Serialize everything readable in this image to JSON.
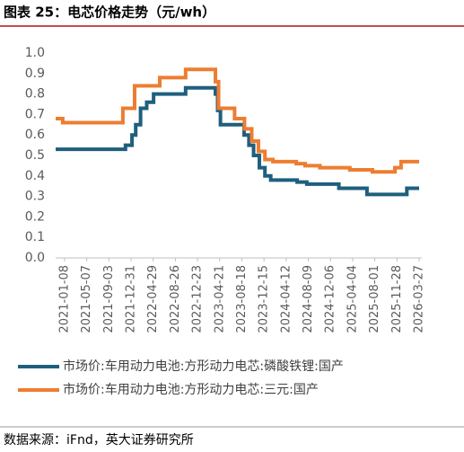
{
  "chart_data": {
    "type": "line",
    "step": true,
    "title": "图表 25：电芯价格走势（元/wh）",
    "source": "数据来源：iFnd，英大证券研究所",
    "xlim": [
      "2020-11-21",
      "2026-03-27"
    ],
    "xticks": [
      "2021-01-08",
      "2021-05-07",
      "2021-09-03",
      "2021-12-31",
      "2022-04-29",
      "2022-08-26",
      "2022-12-23",
      "2023-04-21",
      "2023-08-18",
      "2023-12-15",
      "2024-04-12",
      "2024-08-09",
      "2024-12-06",
      "2025-04-04",
      "2025-08-01",
      "2025-11-28",
      "2026-03-27"
    ],
    "ylim": [
      0,
      1
    ],
    "yticks": [
      {
        "value": 0,
        "label": "0.0"
      },
      0.1,
      0.2,
      0.3,
      0.4,
      0.5,
      0.6,
      0.7,
      0.8,
      0.9,
      {
        "value": 1,
        "label": "1.0"
      }
    ],
    "grid": false,
    "legend": "bottom",
    "series": [
      {
        "name": "市场价:车用动力电池:方形动力电芯:磷酸铁锂:国产",
        "color": "#1f5f7e",
        "x": [
          "2020-11-21",
          "2021-12-01",
          "2022-01-05",
          "2022-01-25",
          "2022-02-20",
          "2022-03-25",
          "2022-05-01",
          "2022-10-20",
          "2023-03-29",
          "2023-04-10",
          "2023-04-25",
          "2023-08-30",
          "2023-09-25",
          "2023-10-20",
          "2023-11-20",
          "2023-12-20",
          "2024-01-20",
          "2024-06-10",
          "2024-08-01",
          "2025-01-20",
          "2025-06-20",
          "2026-01-20",
          "2026-03-27"
        ],
        "values": [
          0.53,
          0.55,
          0.6,
          0.65,
          0.73,
          0.76,
          0.8,
          0.83,
          0.8,
          0.72,
          0.65,
          0.6,
          0.55,
          0.5,
          0.44,
          0.4,
          0.38,
          0.37,
          0.36,
          0.34,
          0.31,
          0.34,
          0.34
        ]
      },
      {
        "name": "市场价:车用动力电池:方形动力电芯:三元:国产",
        "color": "#ed7d31",
        "x": [
          "2020-11-21",
          "2020-12-29",
          "2021-11-17",
          "2022-01-19",
          "2022-06-03",
          "2022-10-20",
          "2023-03-29",
          "2023-04-15",
          "2023-07-10",
          "2023-09-01",
          "2023-10-10",
          "2023-11-15",
          "2023-12-20",
          "2024-02-01",
          "2024-06-05",
          "2024-07-23",
          "2024-10-10",
          "2025-03-20",
          "2025-07-19",
          "2025-11-17",
          "2025-12-20",
          "2026-03-27"
        ],
        "values": [
          0.68,
          0.66,
          0.73,
          0.84,
          0.88,
          0.92,
          0.86,
          0.73,
          0.68,
          0.63,
          0.57,
          0.52,
          0.48,
          0.47,
          0.46,
          0.45,
          0.44,
          0.43,
          0.42,
          0.44,
          0.47,
          0.47
        ]
      }
    ]
  }
}
